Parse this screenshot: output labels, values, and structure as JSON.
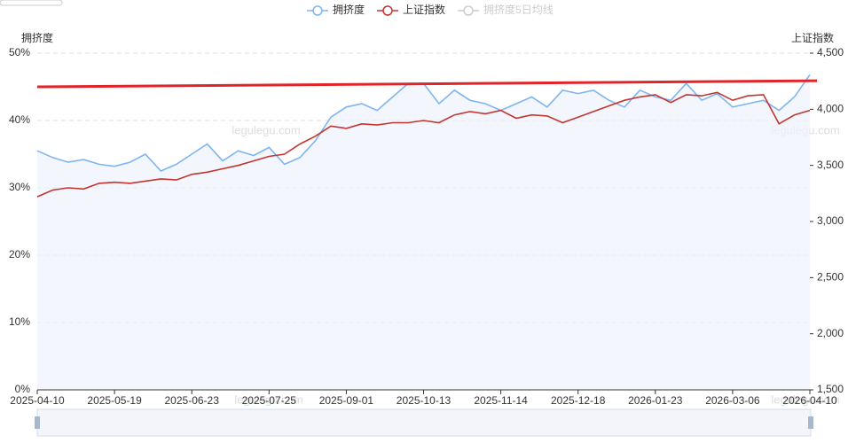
{
  "chart_data": {
    "type": "line",
    "categories": [
      "2025-04-10",
      null,
      null,
      null,
      null,
      "2025-05-19",
      null,
      null,
      null,
      null,
      "2025-06-23",
      null,
      null,
      null,
      null,
      "2025-07-25",
      null,
      null,
      null,
      null,
      "2025-09-01",
      null,
      null,
      null,
      null,
      "2025-10-13",
      null,
      null,
      null,
      null,
      "2025-11-14",
      null,
      null,
      null,
      null,
      "2025-12-18",
      null,
      null,
      null,
      null,
      "2026-01-23",
      null,
      null,
      null,
      null,
      "2026-03-06",
      null,
      null,
      null,
      null,
      "2026-04-10"
    ],
    "ylabel": "拥挤度",
    "y2label": "上证指数",
    "ylim": [
      0,
      50
    ],
    "yticks": [
      {
        "value": 0,
        "label": "0%"
      },
      {
        "value": 10,
        "label": "10%"
      },
      {
        "value": 20,
        "label": "20%"
      },
      {
        "value": 30,
        "label": "30%"
      },
      {
        "value": 40,
        "label": "40%"
      },
      {
        "value": 50,
        "label": "50%"
      }
    ],
    "y2lim": [
      1500,
      4500
    ],
    "y2ticks": [
      {
        "value": 1500,
        "label": "1,500"
      },
      {
        "value": 2000,
        "label": "2,000"
      },
      {
        "value": 2500,
        "label": "2,500"
      },
      {
        "value": 3000,
        "label": "3,000"
      },
      {
        "value": 3500,
        "label": "3,500"
      },
      {
        "value": 4000,
        "label": "4,000"
      },
      {
        "value": 4500,
        "label": "4,500"
      }
    ],
    "grid": true,
    "series": [
      {
        "name": "拥挤度",
        "color": "#7eb5f0",
        "area": true,
        "values": [
          35.5,
          34.5,
          33.8,
          34.2,
          33.5,
          33.2,
          33.8,
          35,
          32.5,
          33.5,
          35,
          36.5,
          34,
          35.5,
          34.8,
          36,
          33.5,
          34.5,
          37,
          40.5,
          42,
          42.5,
          41.5,
          43.5,
          45.5,
          45.5,
          42.5,
          44.5,
          43,
          42.5,
          41.5,
          42.5,
          43.5,
          42,
          44.5,
          44,
          44.5,
          43,
          42,
          44.5,
          43.5,
          43,
          45.5,
          43,
          44,
          42,
          42.5,
          43,
          41.5,
          43.5,
          46.8
        ]
      },
      {
        "name": "上证指数",
        "color": "#c23531",
        "axis": "y2",
        "values": [
          3220,
          3280,
          3300,
          3290,
          3340,
          3350,
          3340,
          3360,
          3380,
          3370,
          3420,
          3440,
          3470,
          3500,
          3540,
          3580,
          3600,
          3690,
          3760,
          3850,
          3830,
          3870,
          3860,
          3880,
          3880,
          3900,
          3880,
          3950,
          3980,
          3960,
          3990,
          3920,
          3950,
          3940,
          3880,
          3930,
          3980,
          4030,
          4080,
          4110,
          4130,
          4060,
          4130,
          4120,
          4150,
          4080,
          4120,
          4130,
          3870,
          3950,
          3990
        ]
      },
      {
        "name": "拥挤度5日均线",
        "color": "#cccccc",
        "hidden": true
      }
    ],
    "trend_line": {
      "color": "#e0242a",
      "values": [
        45,
        45.9
      ]
    },
    "watermarks": [
      "legulegu.com",
      "legulegu.com",
      "legulegu.com",
      "legulegu.com"
    ]
  }
}
